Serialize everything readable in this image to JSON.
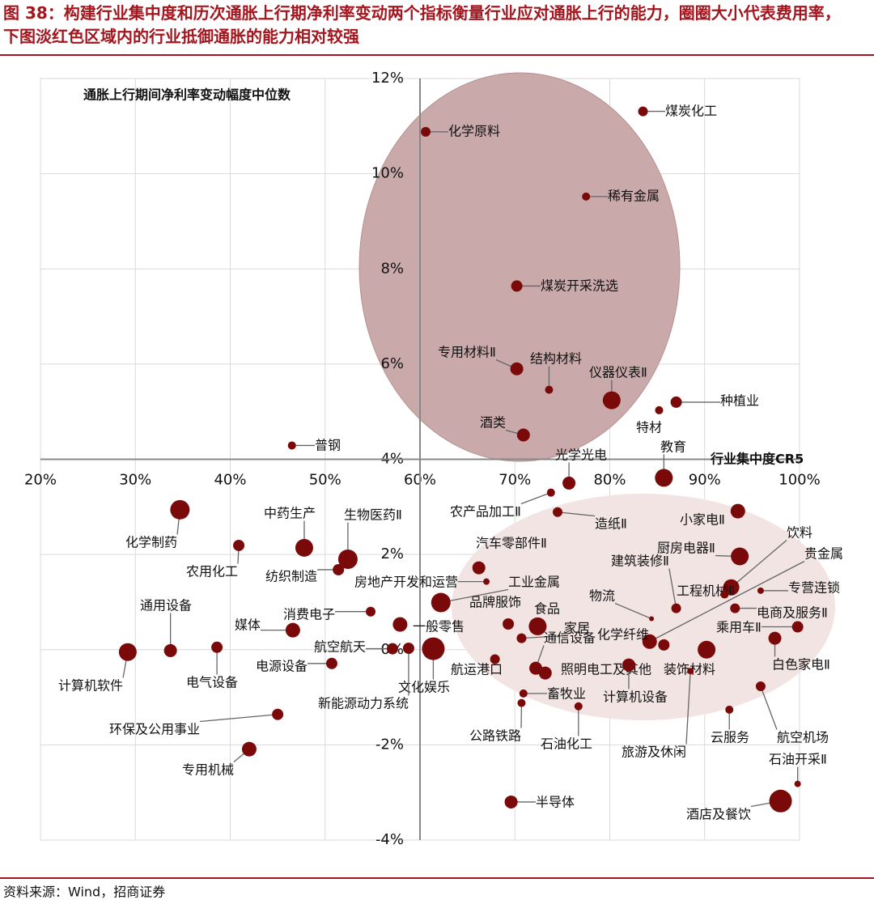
{
  "chart_data": {
    "type": "bubble",
    "title": "图 38：构建行业集中度和历次通胀上行期净利率变动两个指标衡量行业应对通胀上行的能力，圈圈大小代表费用率，下图淡红色区域内的行业抵御通胀的能力相对较强",
    "y_label": "通胀上行期间净利率变动幅度中位数",
    "x_label": "行业集中度CR5",
    "source": "资料来源：Wind，招商证券",
    "color": "#7a0a0a",
    "grid": true,
    "xlim": [
      20,
      100
    ],
    "ylim": [
      -4,
      12
    ],
    "x_axis_at_y": 4,
    "y_axis_at_x": 60,
    "xticks": [
      {
        "value": 20,
        "label": "20%"
      },
      {
        "value": 30,
        "label": "30%"
      },
      {
        "value": 40,
        "label": "40%"
      },
      {
        "value": 50,
        "label": "50%"
      },
      {
        "value": 60,
        "label": "60%"
      },
      {
        "value": 70,
        "label": "70%"
      },
      {
        "value": 80,
        "label": "80%"
      },
      {
        "value": 90,
        "label": "90%"
      },
      {
        "value": 100,
        "label": "100%"
      }
    ],
    "yticks": [
      {
        "value": -4,
        "label": "-4%"
      },
      {
        "value": -2,
        "label": "-2%"
      },
      {
        "value": 0,
        "label": "0%"
      },
      {
        "value": 2,
        "label": "2%"
      },
      {
        "value": 4,
        "label": "4%"
      },
      {
        "value": 6,
        "label": "6%"
      },
      {
        "value": 8,
        "label": "8%"
      },
      {
        "value": 10,
        "label": "10%"
      },
      {
        "value": 12,
        "label": "12%"
      }
    ],
    "points": [
      {
        "label": "煤炭化工",
        "x": 83.5,
        "y": 11.31,
        "size": 6
      },
      {
        "label": "化学原料",
        "x": 60.6,
        "y": 10.88,
        "size": 6
      },
      {
        "label": "稀有金属",
        "x": 77.5,
        "y": 9.52,
        "size": 5
      },
      {
        "label": "煤炭开采洗选",
        "x": 70.2,
        "y": 7.64,
        "size": 7
      },
      {
        "label": "专用材料Ⅱ",
        "x": 70.2,
        "y": 5.9,
        "size": 8
      },
      {
        "label": "结构材料",
        "x": 73.6,
        "y": 5.46,
        "size": 5
      },
      {
        "label": "仪器仪表Ⅱ",
        "x": 80.2,
        "y": 5.24,
        "size": 11
      },
      {
        "label": "种植业",
        "x": 87.0,
        "y": 5.2,
        "size": 7
      },
      {
        "label": "特材",
        "x": 85.2,
        "y": 5.03,
        "size": 5
      },
      {
        "label": "酒类",
        "x": 70.9,
        "y": 4.51,
        "size": 8
      },
      {
        "label": "普钢",
        "x": 46.5,
        "y": 4.29,
        "size": 5
      },
      {
        "label": "教育",
        "x": 85.7,
        "y": 3.61,
        "size": 11
      },
      {
        "label": "光学光电",
        "x": 75.7,
        "y": 3.5,
        "size": 8
      },
      {
        "label": "农产品加工Ⅱ",
        "x": 73.8,
        "y": 3.3,
        "size": 5
      },
      {
        "label": "造纸Ⅱ",
        "x": 74.5,
        "y": 2.89,
        "size": 6
      },
      {
        "label": "小家电Ⅱ",
        "x": 93.5,
        "y": 2.91,
        "size": 9
      },
      {
        "label": "化学制药",
        "x": 34.7,
        "y": 2.94,
        "size": 12
      },
      {
        "label": "农用化工",
        "x": 40.9,
        "y": 2.19,
        "size": 7
      },
      {
        "label": "中药生产",
        "x": 47.8,
        "y": 2.14,
        "size": 11
      },
      {
        "label": "生物医药Ⅱ",
        "x": 52.4,
        "y": 1.9,
        "size": 12
      },
      {
        "label": "纺织制造",
        "x": 51.4,
        "y": 1.68,
        "size": 7
      },
      {
        "label": "汽车零部件Ⅱ",
        "x": 66.2,
        "y": 1.72,
        "size": 8
      },
      {
        "label": "厨房电器Ⅱ",
        "x": 93.7,
        "y": 1.96,
        "size": 11
      },
      {
        "label": "饮料",
        "x": 92.8,
        "y": 1.31,
        "size": 10
      },
      {
        "label": "工程机械Ⅱ",
        "x": 92.1,
        "y": 1.16,
        "size": 5
      },
      {
        "label": "专营连锁",
        "x": 95.9,
        "y": 1.24,
        "size": 4
      },
      {
        "label": "贵金属",
        "x": 84.2,
        "y": 0.17,
        "size": 9
      },
      {
        "label": "建筑装修Ⅱ",
        "x": 87.0,
        "y": 0.87,
        "size": 6
      },
      {
        "label": "物流",
        "x": 84.4,
        "y": 0.65,
        "size": 3
      },
      {
        "label": "电商及服务Ⅱ",
        "x": 93.2,
        "y": 0.87,
        "size": 6
      },
      {
        "label": "乘用车Ⅱ",
        "x": 99.8,
        "y": 0.48,
        "size": 7
      },
      {
        "label": "白色家电Ⅱ",
        "x": 97.4,
        "y": 0.24,
        "size": 8
      },
      {
        "label": "房地产开发和运营",
        "x": 67.0,
        "y": 1.43,
        "size": 4
      },
      {
        "label": "工业金属",
        "x": 62.2,
        "y": 0.99,
        "size": 12
      },
      {
        "label": "品牌服饰",
        "x": 69.3,
        "y": 0.54,
        "size": 7
      },
      {
        "label": "食品",
        "x": 72.4,
        "y": 0.49,
        "size": 11
      },
      {
        "label": "家居",
        "x": 70.7,
        "y": 0.24,
        "size": 6
      },
      {
        "label": "通信设备",
        "x": 72.2,
        "y": -0.39,
        "size": 8
      },
      {
        "label": "化学纤维",
        "x": 85.7,
        "y": 0.1,
        "size": 7
      },
      {
        "label": "通用设备",
        "x": 33.7,
        "y": -0.02,
        "size": 8
      },
      {
        "label": "媒体",
        "x": 46.6,
        "y": 0.41,
        "size": 9
      },
      {
        "label": "消费电子",
        "x": 54.8,
        "y": 0.8,
        "size": 6
      },
      {
        "label": "航空航天",
        "x": 57.1,
        "y": 0.02,
        "size": 7
      },
      {
        "label": "一般零售",
        "x": 57.9,
        "y": 0.53,
        "size": 9
      },
      {
        "label": "计算机软件",
        "x": 29.2,
        "y": -0.05,
        "size": 11
      },
      {
        "label": "电气设备",
        "x": 38.6,
        "y": 0.05,
        "size": 7
      },
      {
        "label": "电源设备",
        "x": 50.7,
        "y": -0.29,
        "size": 7
      },
      {
        "label": "航运港口",
        "x": 67.9,
        "y": -0.2,
        "size": 6
      },
      {
        "label": "照明电工及其他",
        "x": 73.2,
        "y": -0.49,
        "size": 8
      },
      {
        "label": "装饰材料",
        "x": 90.2,
        "y": 0,
        "size": 11
      },
      {
        "label": "文化娱乐",
        "x": 61.4,
        "y": 0.02,
        "size": 14
      },
      {
        "label": "新能源动力系统",
        "x": 58.8,
        "y": 0.03,
        "size": 7
      },
      {
        "label": "畜牧业",
        "x": 70.9,
        "y": -0.92,
        "size": 5
      },
      {
        "label": "计算机设备",
        "x": 82.0,
        "y": -0.32,
        "size": 8
      },
      {
        "label": "公路铁路",
        "x": 70.7,
        "y": -1.12,
        "size": 5
      },
      {
        "label": "石油化工",
        "x": 76.7,
        "y": -1.19,
        "size": 5
      },
      {
        "label": "旅游及休闲",
        "x": 88.5,
        "y": -0.45,
        "size": 4
      },
      {
        "label": "云服务",
        "x": 92.6,
        "y": -1.26,
        "size": 5
      },
      {
        "label": "航空机场",
        "x": 95.9,
        "y": -0.77,
        "size": 6
      },
      {
        "label": "环保及公用事业",
        "x": 45.0,
        "y": -1.36,
        "size": 7
      },
      {
        "label": "石油开采Ⅱ",
        "x": 99.8,
        "y": -2.82,
        "size": 4
      },
      {
        "label": "专用机械",
        "x": 42.0,
        "y": -2.09,
        "size": 9
      },
      {
        "label": "半导体",
        "x": 69.6,
        "y": -3.2,
        "size": 8
      },
      {
        "label": "酒店及餐饮",
        "x": 98.0,
        "y": -3.18,
        "size": 14
      }
    ]
  }
}
